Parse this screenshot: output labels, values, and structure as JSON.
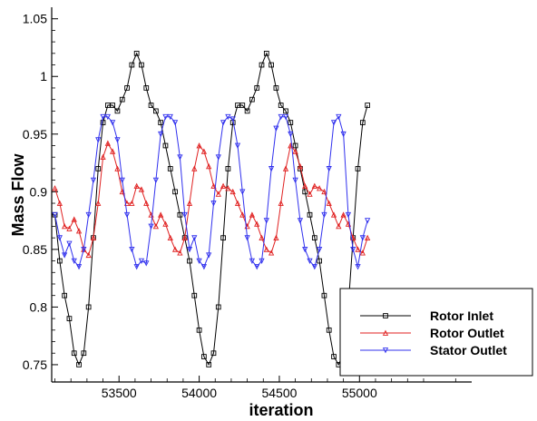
{
  "chart_data": {
    "type": "line",
    "title": "",
    "xlabel": "iteration",
    "ylabel": "Mass Flow",
    "xlim": [
      53080,
      55700
    ],
    "ylim": [
      0.735,
      1.06
    ],
    "x_ticks": [
      53500,
      54000,
      54500,
      55000
    ],
    "x_tick_labels": [
      "53500",
      "54000",
      "54500",
      "55000"
    ],
    "y_ticks": [
      0.75,
      0.8,
      0.85,
      0.9,
      0.95,
      1.0,
      1.05
    ],
    "y_tick_labels": [
      "0.75",
      "0.8",
      "0.85",
      "0.9",
      "0.95",
      "1",
      "1.05"
    ],
    "grid": false,
    "legend_position": "bottom-right",
    "series": [
      {
        "name": "Rotor Inlet",
        "color": "#000000",
        "marker": "square",
        "x": [
          53100,
          53130,
          53160,
          53190,
          53220,
          53250,
          53280,
          53310,
          53340,
          53370,
          53400,
          53430,
          53460,
          53490,
          53520,
          53550,
          53580,
          53610,
          53640,
          53670,
          53700,
          53730,
          53760,
          53790,
          53820,
          53850,
          53880,
          53910,
          53940,
          53970,
          54000,
          54030,
          54060,
          54090,
          54120,
          54150,
          54180,
          54210,
          54240,
          54270,
          54300,
          54330,
          54360,
          54390,
          54420,
          54450,
          54480,
          54510,
          54540,
          54570,
          54600,
          54630,
          54660,
          54690,
          54720,
          54750,
          54780,
          54810,
          54840,
          54870,
          54900,
          54930,
          54960,
          54990,
          55020,
          55050
        ],
        "values": [
          0.88,
          0.84,
          0.81,
          0.79,
          0.76,
          0.75,
          0.76,
          0.8,
          0.86,
          0.92,
          0.96,
          0.975,
          0.975,
          0.97,
          0.98,
          0.99,
          1.01,
          1.02,
          1.01,
          0.99,
          0.975,
          0.97,
          0.96,
          0.94,
          0.92,
          0.9,
          0.88,
          0.86,
          0.84,
          0.81,
          0.78,
          0.757,
          0.75,
          0.76,
          0.8,
          0.86,
          0.92,
          0.96,
          0.975,
          0.975,
          0.97,
          0.98,
          0.99,
          1.01,
          1.02,
          1.01,
          0.99,
          0.975,
          0.97,
          0.96,
          0.94,
          0.92,
          0.9,
          0.88,
          0.86,
          0.84,
          0.81,
          0.78,
          0.757,
          0.75,
          0.76,
          0.8,
          0.86,
          0.92,
          0.96,
          0.975
        ]
      },
      {
        "name": "Rotor Outlet",
        "color": "#e02020",
        "marker": "triangle-up",
        "x": [
          53100,
          53130,
          53160,
          53190,
          53220,
          53250,
          53280,
          53310,
          53340,
          53370,
          53400,
          53430,
          53460,
          53490,
          53520,
          53550,
          53580,
          53610,
          53640,
          53670,
          53700,
          53730,
          53760,
          53790,
          53820,
          53850,
          53880,
          53910,
          53940,
          53970,
          54000,
          54030,
          54060,
          54090,
          54120,
          54150,
          54180,
          54210,
          54240,
          54270,
          54300,
          54330,
          54360,
          54390,
          54420,
          54450,
          54480,
          54510,
          54540,
          54570,
          54600,
          54630,
          54660,
          54690,
          54720,
          54750,
          54780,
          54810,
          54840,
          54870,
          54900,
          54930,
          54960,
          54990,
          55020,
          55050
        ],
        "values": [
          0.903,
          0.89,
          0.87,
          0.868,
          0.876,
          0.866,
          0.85,
          0.845,
          0.86,
          0.89,
          0.93,
          0.942,
          0.935,
          0.92,
          0.9,
          0.89,
          0.89,
          0.905,
          0.902,
          0.89,
          0.88,
          0.87,
          0.88,
          0.872,
          0.86,
          0.85,
          0.847,
          0.86,
          0.89,
          0.92,
          0.94,
          0.935,
          0.922,
          0.905,
          0.898,
          0.905,
          0.903,
          0.9,
          0.89,
          0.88,
          0.87,
          0.88,
          0.872,
          0.86,
          0.85,
          0.847,
          0.86,
          0.89,
          0.92,
          0.94,
          0.935,
          0.922,
          0.905,
          0.898,
          0.905,
          0.903,
          0.9,
          0.89,
          0.88,
          0.87,
          0.88,
          0.872,
          0.86,
          0.85,
          0.847,
          0.86
        ]
      },
      {
        "name": "Stator Outlet",
        "color": "#3030ee",
        "marker": "triangle-down",
        "x": [
          53100,
          53130,
          53160,
          53190,
          53220,
          53250,
          53280,
          53310,
          53340,
          53370,
          53400,
          53430,
          53460,
          53490,
          53520,
          53550,
          53580,
          53610,
          53640,
          53670,
          53700,
          53730,
          53760,
          53790,
          53820,
          53850,
          53880,
          53910,
          53940,
          53970,
          54000,
          54030,
          54060,
          54090,
          54120,
          54150,
          54180,
          54210,
          54240,
          54270,
          54300,
          54330,
          54360,
          54390,
          54420,
          54450,
          54480,
          54510,
          54540,
          54570,
          54600,
          54630,
          54660,
          54690,
          54720,
          54750,
          54780,
          54810,
          54840,
          54870,
          54900,
          54930,
          54960,
          54990,
          55020,
          55050
        ],
        "values": [
          0.88,
          0.86,
          0.845,
          0.855,
          0.84,
          0.835,
          0.85,
          0.88,
          0.91,
          0.945,
          0.965,
          0.965,
          0.96,
          0.945,
          0.91,
          0.88,
          0.85,
          0.835,
          0.84,
          0.838,
          0.87,
          0.91,
          0.95,
          0.965,
          0.965,
          0.96,
          0.93,
          0.88,
          0.85,
          0.86,
          0.84,
          0.835,
          0.845,
          0.89,
          0.93,
          0.96,
          0.965,
          0.963,
          0.94,
          0.9,
          0.86,
          0.84,
          0.835,
          0.84,
          0.875,
          0.92,
          0.955,
          0.965,
          0.965,
          0.95,
          0.91,
          0.875,
          0.85,
          0.84,
          0.835,
          0.85,
          0.88,
          0.92,
          0.96,
          0.965,
          0.95,
          0.88,
          0.85,
          0.835,
          0.86,
          0.875
        ]
      }
    ]
  }
}
